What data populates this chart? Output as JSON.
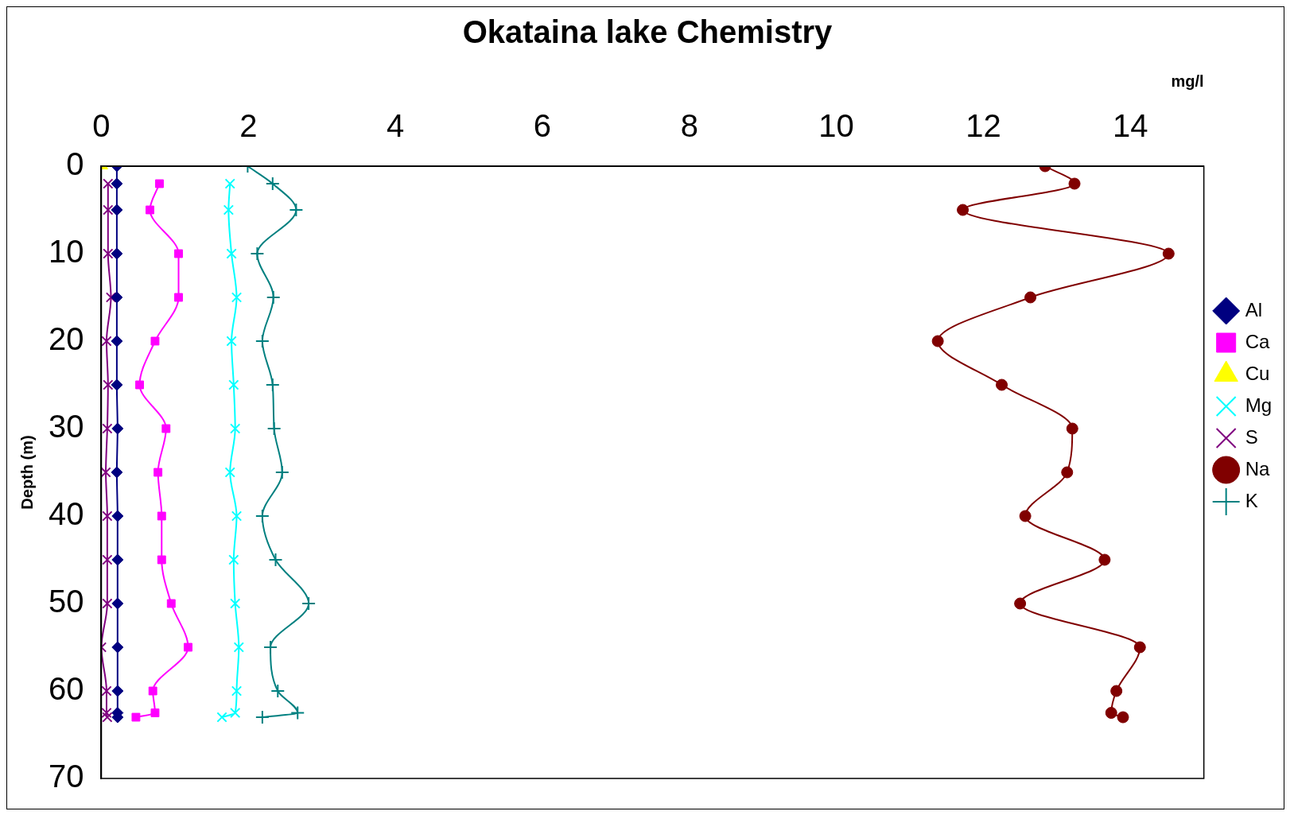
{
  "chart_data": {
    "type": "line",
    "title": "Okataina lake Chemistry",
    "xlabel": "mg/l",
    "ylabel": "Depth (m)",
    "xlim": [
      0,
      15
    ],
    "xticks": [
      0,
      2,
      4,
      6,
      8,
      10,
      12,
      14
    ],
    "ylim": [
      70,
      0
    ],
    "yticks": [
      0,
      10,
      20,
      30,
      40,
      50,
      60,
      70
    ],
    "grid": false,
    "legend": "right",
    "line_style": "solid",
    "series": [
      {
        "name": "Al",
        "color": "#000080",
        "marker": "diamond",
        "x": [
          0.21,
          0.21,
          0.21,
          0.21,
          0.21,
          0.21,
          0.21,
          0.22,
          0.21,
          0.22,
          0.22,
          0.22,
          0.22,
          0.22,
          0.22,
          0.22
        ],
        "values": [
          0,
          2,
          5,
          10,
          15,
          20,
          25,
          30,
          35,
          40,
          45,
          50,
          55,
          60,
          62.5,
          63
        ]
      },
      {
        "name": "Ca",
        "color": "#ff00ff",
        "marker": "square",
        "x": [
          0.79,
          0.66,
          1.05,
          1.05,
          0.73,
          0.52,
          0.88,
          0.77,
          0.82,
          0.82,
          0.95,
          1.18,
          0.7,
          0.73,
          0.47
        ],
        "values": [
          2,
          5,
          10,
          15,
          20,
          25,
          30,
          35,
          40,
          45,
          50,
          55,
          60,
          62.5,
          63
        ]
      },
      {
        "name": "Cu",
        "color": "#ffff00",
        "marker": "triangle",
        "x": [
          0.02
        ],
        "values": [
          0
        ]
      },
      {
        "name": "Mg",
        "color": "#00ffff",
        "marker": "cross",
        "x": [
          1.75,
          1.73,
          1.77,
          1.84,
          1.77,
          1.8,
          1.82,
          1.75,
          1.84,
          1.8,
          1.82,
          1.87,
          1.84,
          1.82,
          1.64
        ],
        "values": [
          2,
          5,
          10,
          15,
          20,
          25,
          30,
          35,
          40,
          45,
          50,
          55,
          60,
          62.5,
          63
        ]
      },
      {
        "name": "S",
        "color": "#800080",
        "marker": "cross",
        "x": [
          0.09,
          0.09,
          0.09,
          0.13,
          0.07,
          0.09,
          0.08,
          0.06,
          0.08,
          0.08,
          0.08,
          0,
          0.07,
          0.07,
          0.08
        ],
        "values": [
          2,
          5,
          10,
          15,
          20,
          25,
          30,
          35,
          40,
          45,
          50,
          55,
          60,
          62.5,
          63
        ]
      },
      {
        "name": "Na",
        "color": "#800000",
        "marker": "circle",
        "x": [
          12.84,
          13.24,
          11.72,
          14.52,
          12.64,
          11.38,
          12.25,
          13.21,
          13.14,
          12.57,
          13.65,
          12.5,
          14.13,
          13.81,
          13.74,
          13.9
        ],
        "values": [
          0,
          2,
          5,
          10,
          15,
          20,
          25,
          30,
          35,
          40,
          45,
          50,
          55,
          60,
          62.5,
          63
        ]
      },
      {
        "name": "K",
        "color": "#008080",
        "marker": "plus",
        "x": [
          1.99,
          2.33,
          2.65,
          2.12,
          2.34,
          2.19,
          2.33,
          2.35,
          2.46,
          2.19,
          2.37,
          2.82,
          2.3,
          2.4,
          2.67,
          2.19
        ],
        "values": [
          0,
          2,
          5,
          10,
          15,
          20,
          25,
          30,
          35,
          40,
          45,
          50,
          55,
          60,
          62.5,
          63
        ]
      }
    ]
  }
}
